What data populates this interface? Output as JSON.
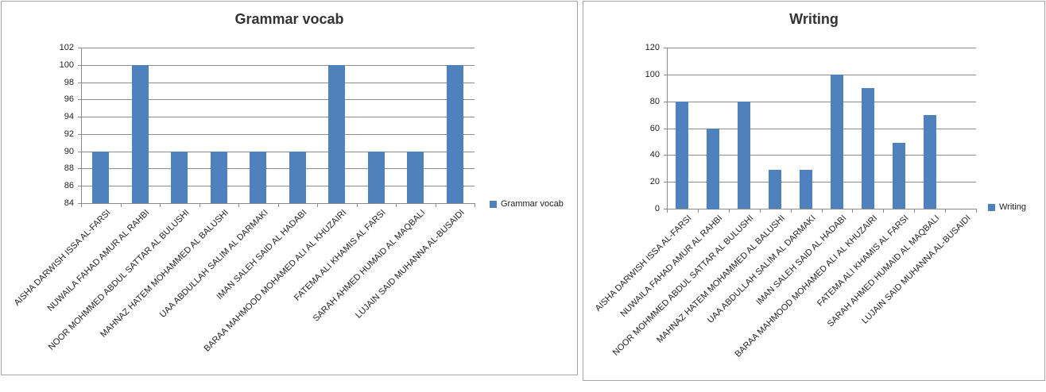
{
  "page": {
    "background": "#ffffff",
    "description": "Two spreadsheet-style clustered column charts side by side"
  },
  "styles": {
    "bar_color": "#4F81BD",
    "grid_color": "#8C8C8C",
    "axis_color": "#8C8C8C",
    "panel_border": "#A6A6A6",
    "title_color": "#333333",
    "tick_label_color": "#1F1F1F"
  },
  "chart_data": [
    {
      "type": "bar",
      "title": "Grammar vocab",
      "legend": "Grammar vocab",
      "legend_position": "right",
      "grid": true,
      "bar_color": "#4F81BD",
      "xlabel": "",
      "ylabel": "",
      "ylim": [
        84,
        102
      ],
      "ytick_step": 2,
      "categories": [
        "AISHA DARWISH ISSA AL-FARSI",
        "NUWAILA FAHAD AMUR AL RAHBI",
        "NOOR MOHMMED ABDUL SATTAR AL BULUSHI",
        "MAHNAZ HATEM MOHAMMED AL BALUSHI",
        "UAA ABDULLAH SALIM AL DARMAKI",
        "IMAN SALEH SAID AL HADABI",
        "BARAA MAHMOOD MOHAMED ALI AL KHUZAIRI",
        "FATEMA ALI KHAMIS AL FARSI",
        "SARAH AHMED HUMAID AL MAQBALI",
        "LUJAIN SAID MUHANNA AL-BUSAIDI"
      ],
      "values": [
        90,
        100,
        90,
        90,
        90,
        90,
        100,
        90,
        90,
        100
      ]
    },
    {
      "type": "bar",
      "title": "Writing",
      "legend": "Writing",
      "legend_position": "right",
      "grid": true,
      "bar_color": "#4F81BD",
      "xlabel": "",
      "ylabel": "",
      "ylim": [
        0,
        120
      ],
      "ytick_step": 20,
      "categories": [
        "AISHA DARWISH ISSA AL-FARSI",
        "NUWAILA FAHAD AMUR AL RAHBI",
        "NOOR MOHMMED ABDUL SATTAR AL BULUSHI",
        "MAHNAZ HATEM MOHAMMED AL BALUSHI",
        "UAA ABDULLAH SALIM AL DARMAKI",
        "IMAN SALEH SAID AL HADABI",
        "BARAA MAHMOOD MOHAMED ALI AL KHUZAIRI",
        "FATEMA ALI KHAMIS AL FARSI",
        "SARAH AHMED HUMAID AL MAQBALI",
        "LUJAIN SAID MUHANNA AL-BUSAIDI"
      ],
      "values": [
        80,
        60,
        80,
        29,
        29,
        100,
        90,
        49,
        70,
        0
      ]
    }
  ]
}
